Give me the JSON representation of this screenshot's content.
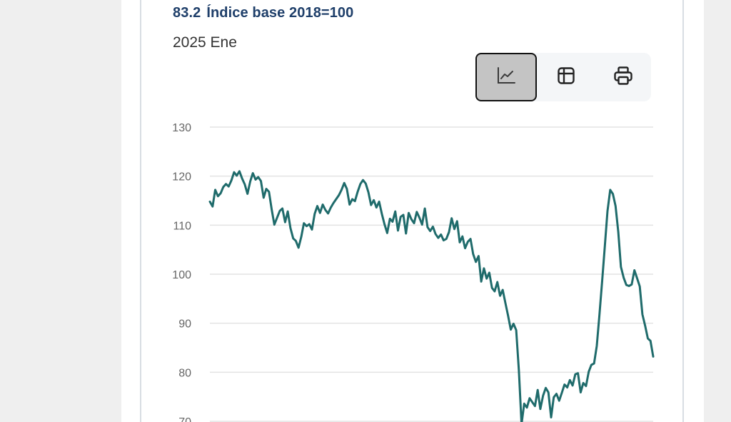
{
  "header": {
    "value": "83.2",
    "title": "Índice base 2018=100",
    "period": "2025 Ene"
  },
  "toolbar": {
    "buttons": [
      {
        "name": "chart-view",
        "icon": "line-chart-icon",
        "active": true
      },
      {
        "name": "table-view",
        "icon": "table-icon",
        "active": false
      },
      {
        "name": "print",
        "icon": "printer-icon",
        "active": false
      }
    ]
  },
  "colors": {
    "title": "#1f3f6a",
    "series": "#1f6b6b",
    "grid": "#e3e3e3",
    "active_button": "#c4c4c4"
  },
  "chart_data": {
    "type": "line",
    "title": "",
    "xlabel": "",
    "ylabel": "",
    "ylim": [
      70,
      130
    ],
    "yticks": [
      "130",
      "120",
      "110",
      "100",
      "90",
      "80",
      "70"
    ],
    "grid": true,
    "series": [
      {
        "values": [
          114.8,
          113.8,
          117.2,
          115.9,
          116.5,
          117.8,
          118.4,
          117.9,
          119.1,
          120.8,
          120.1,
          121.0,
          119.5,
          118.3,
          116.4,
          118.9,
          120.6,
          119.3,
          119.8,
          119.0,
          115.6,
          117.4,
          116.8,
          113.2,
          110.1,
          111.5,
          112.9,
          113.4,
          110.6,
          112.8,
          109.4,
          107.3,
          106.8,
          105.4,
          107.6,
          110.4,
          109.8,
          110.2,
          109.1,
          112.3,
          113.9,
          112.5,
          114.2,
          113.1,
          112.4,
          113.6,
          114.5,
          115.3,
          116.1,
          117.2,
          118.6,
          117.4,
          114.2,
          115.3,
          114.9,
          116.8,
          118.4,
          119.2,
          118.5,
          116.7,
          114.1,
          115.1,
          113.6,
          114.8,
          112.3,
          110.2,
          108.4,
          111.3,
          110.7,
          112.8,
          108.9,
          111.7,
          112.1,
          108.3,
          112.5,
          111.2,
          110.4,
          112.7,
          111.5,
          110.1,
          113.4,
          109.6,
          108.8,
          109.7,
          108.2,
          107.4,
          108.1,
          106.9,
          107.2,
          108.6,
          111.4,
          109.2,
          110.8,
          106.5,
          107.7,
          105.3,
          106.6,
          107.2,
          104.1,
          102.5,
          103.7,
          98.5,
          101.2,
          99.1,
          100.3,
          97.2,
          96.5,
          98.4,
          95.6,
          96.8,
          94.1,
          91.5,
          88.7,
          89.9,
          88.6,
          80.5,
          69.4,
          73.6,
          72.8,
          74.7,
          73.9,
          73.1,
          76.4,
          72.5,
          75.2,
          76.8,
          75.9,
          70.8,
          74.9,
          75.6,
          74.2,
          75.8,
          77.5,
          76.9,
          78.4,
          77.3,
          79.6,
          79.8,
          75.9,
          77.8,
          77.2,
          80.1,
          81.5,
          81.8,
          85.4,
          91.7,
          98.6,
          105.8,
          112.9,
          117.2,
          116.4,
          113.9,
          108.6,
          101.5,
          99.3,
          97.8,
          97.6,
          97.9,
          100.8,
          99.2,
          97.5,
          91.8,
          89.5,
          86.9,
          86.4,
          83.2
        ]
      }
    ]
  }
}
